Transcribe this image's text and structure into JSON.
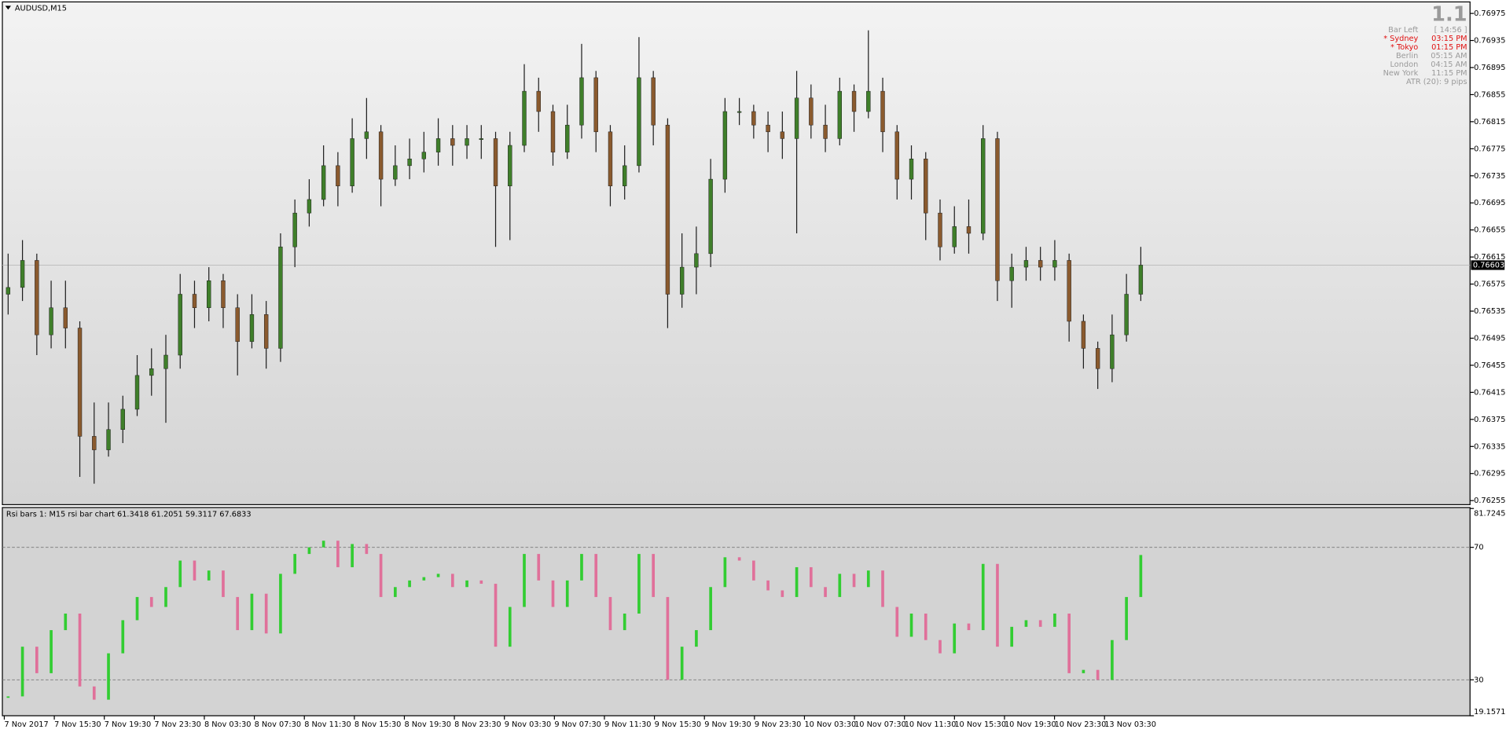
{
  "chart_data": [
    {
      "type": "candlestick",
      "title": "AUDUSD,M15",
      "open": [
        0.7656,
        0.7657,
        0.7661,
        0.765,
        0.7654,
        0.7651,
        0.7635,
        0.7633,
        0.7636,
        0.7639,
        0.7644,
        0.7645,
        0.7647,
        0.7656,
        0.7654,
        0.7658,
        0.7654,
        0.7649,
        0.7653,
        0.7648,
        0.7663,
        0.7668,
        0.767,
        0.7675,
        0.7672,
        0.7679,
        0.768,
        0.7673,
        0.7675,
        0.7676,
        0.7677,
        0.7679,
        0.7678,
        0.7679,
        0.7679,
        0.7672,
        0.7678,
        0.7686,
        0.7683,
        0.7677,
        0.7681,
        0.7688,
        0.768,
        0.7672,
        0.7675,
        0.7688,
        0.7681,
        0.7656,
        0.766,
        0.7662,
        0.7673,
        0.7683,
        0.7683,
        0.7681,
        0.768,
        0.7679,
        0.7685,
        0.7681,
        0.7679,
        0.7686,
        0.7683,
        0.7686,
        0.768,
        0.7673,
        0.7676,
        0.7668,
        0.7663,
        0.7666,
        0.7665,
        0.7679,
        0.7658,
        0.766,
        0.7661,
        0.766,
        0.7661,
        0.7652,
        0.7648,
        0.7645,
        0.765,
        0.7656
      ],
      "high": [
        0.7662,
        0.7664,
        0.7662,
        0.7658,
        0.7658,
        0.7652,
        0.764,
        0.764,
        0.7641,
        0.7647,
        0.7648,
        0.765,
        0.7659,
        0.7658,
        0.766,
        0.7659,
        0.7656,
        0.7656,
        0.7655,
        0.7665,
        0.767,
        0.7673,
        0.7678,
        0.7677,
        0.7682,
        0.7685,
        0.7681,
        0.7678,
        0.7679,
        0.768,
        0.7682,
        0.7681,
        0.7681,
        0.7681,
        0.768,
        0.768,
        0.769,
        0.7688,
        0.7684,
        0.7684,
        0.7693,
        0.7689,
        0.7681,
        0.7678,
        0.7694,
        0.7689,
        0.7682,
        0.7665,
        0.7666,
        0.7676,
        0.7685,
        0.7685,
        0.7684,
        0.7683,
        0.7683,
        0.7689,
        0.7687,
        0.7684,
        0.7688,
        0.7687,
        0.7695,
        0.7688,
        0.7681,
        0.7678,
        0.7677,
        0.767,
        0.7669,
        0.767,
        0.7681,
        0.768,
        0.7662,
        0.7663,
        0.7663,
        0.7664,
        0.7662,
        0.7653,
        0.7649,
        0.7653,
        0.7659,
        0.7663
      ],
      "low": [
        0.7653,
        0.7655,
        0.7647,
        0.7648,
        0.7648,
        0.7629,
        0.7628,
        0.7632,
        0.7634,
        0.7638,
        0.7641,
        0.7637,
        0.7645,
        0.7651,
        0.7652,
        0.7651,
        0.7644,
        0.7648,
        0.7645,
        0.7646,
        0.766,
        0.7666,
        0.7669,
        0.7669,
        0.7671,
        0.7676,
        0.7669,
        0.7672,
        0.7673,
        0.7674,
        0.7675,
        0.7675,
        0.7676,
        0.7676,
        0.7663,
        0.7664,
        0.7677,
        0.768,
        0.7675,
        0.7676,
        0.7679,
        0.7677,
        0.7669,
        0.767,
        0.7674,
        0.7678,
        0.7651,
        0.7654,
        0.7656,
        0.766,
        0.7671,
        0.7681,
        0.7679,
        0.7677,
        0.7676,
        0.7665,
        0.7679,
        0.7677,
        0.7678,
        0.768,
        0.7682,
        0.7677,
        0.767,
        0.767,
        0.7664,
        0.7661,
        0.7662,
        0.7662,
        0.7664,
        0.7655,
        0.7654,
        0.7658,
        0.7658,
        0.7658,
        0.7649,
        0.7645,
        0.7642,
        0.7643,
        0.7649,
        0.7655
      ],
      "close": [
        0.7657,
        0.7661,
        0.765,
        0.7654,
        0.7651,
        0.7635,
        0.7633,
        0.7636,
        0.7639,
        0.7644,
        0.7645,
        0.7647,
        0.7656,
        0.7654,
        0.7658,
        0.7654,
        0.7649,
        0.7653,
        0.7648,
        0.7663,
        0.7668,
        0.767,
        0.7675,
        0.7672,
        0.7679,
        0.768,
        0.7673,
        0.7675,
        0.7676,
        0.7677,
        0.7679,
        0.7678,
        0.7679,
        0.7679,
        0.7672,
        0.7678,
        0.7686,
        0.7683,
        0.7677,
        0.7681,
        0.7688,
        0.768,
        0.7672,
        0.7675,
        0.7688,
        0.7681,
        0.7656,
        0.766,
        0.7662,
        0.7673,
        0.7683,
        0.7683,
        0.7681,
        0.768,
        0.7679,
        0.7685,
        0.7681,
        0.7679,
        0.7686,
        0.7683,
        0.7686,
        0.768,
        0.7673,
        0.7676,
        0.7668,
        0.7663,
        0.7666,
        0.7665,
        0.7679,
        0.7658,
        0.766,
        0.7661,
        0.766,
        0.7661,
        0.7652,
        0.7648,
        0.7645,
        0.765,
        0.7656,
        0.76603
      ],
      "up_color": "#3f7f2a",
      "down_color": "#8a5a2e",
      "wick_color": "#1e1e1e",
      "ylim": [
        0.76249,
        0.76992
      ],
      "yticks": [
        0.76975,
        0.76935,
        0.76895,
        0.76855,
        0.76815,
        0.76775,
        0.76735,
        0.76695,
        0.76655,
        0.76615,
        0.76575,
        0.76535,
        0.76495,
        0.76455,
        0.76415,
        0.76375,
        0.76335,
        0.76295,
        0.76255
      ],
      "last_price": 0.76603,
      "clock": {
        "version": "1.1",
        "rows": [
          {
            "label": "Bar Left",
            "value": "[ 14:56 ]",
            "color": "#9a9a9a"
          },
          {
            "label": "* Sydney",
            "value": "03:15 PM",
            "color": "#e01010"
          },
          {
            "label": "* Tokyo",
            "value": "01:15 PM",
            "color": "#e01010"
          },
          {
            "label": "Berlin",
            "value": "05:15 AM",
            "color": "#9a9a9a"
          },
          {
            "label": "London",
            "value": "04:15 AM",
            "color": "#9a9a9a"
          },
          {
            "label": "New York",
            "value": "11:15 PM",
            "color": "#9a9a9a"
          }
        ],
        "atr": "ATR (20): 9 pips"
      }
    },
    {
      "type": "rsi_bars",
      "title": "Rsi bars 1: M15  rsi bar chart 61.3418 61.2051 59.3117 67.6833",
      "values": [
        25,
        40,
        32,
        45,
        50,
        28,
        24,
        38,
        48,
        55,
        52,
        58,
        66,
        60,
        63,
        55,
        45,
        56,
        44,
        62,
        68,
        70,
        72,
        64,
        71,
        68,
        55,
        58,
        60,
        61,
        62,
        58,
        60,
        59,
        40,
        52,
        68,
        60,
        52,
        60,
        68,
        55,
        45,
        50,
        68,
        55,
        30,
        40,
        45,
        58,
        67,
        66,
        60,
        57,
        55,
        64,
        58,
        55,
        62,
        58,
        63,
        52,
        43,
        50,
        42,
        38,
        47,
        45,
        65,
        40,
        46,
        48,
        46,
        50,
        32,
        33,
        30,
        42,
        55,
        67.6833
      ],
      "up_color": "#32cd32",
      "down_color": "#e0709a",
      "ylim": [
        19.1571,
        81.7245
      ],
      "yticks": [
        81.7245,
        70,
        30,
        19.1571
      ],
      "levels": [
        70,
        30
      ],
      "xtick_labels": [
        "7 Nov 2017",
        "7 Nov 15:30",
        "7 Nov 19:30",
        "7 Nov 23:30",
        "8 Nov 03:30",
        "8 Nov 07:30",
        "8 Nov 11:30",
        "8 Nov 15:30",
        "8 Nov 19:30",
        "8 Nov 23:30",
        "9 Nov 03:30",
        "9 Nov 07:30",
        "9 Nov 11:30",
        "9 Nov 15:30",
        "9 Nov 19:30",
        "9 Nov 23:30",
        "10 Nov 03:30",
        "10 Nov 07:30",
        "10 Nov 11:30",
        "10 Nov 15:30",
        "10 Nov 19:30",
        "10 Nov 23:30",
        "13 Nov 03:30"
      ]
    }
  ]
}
